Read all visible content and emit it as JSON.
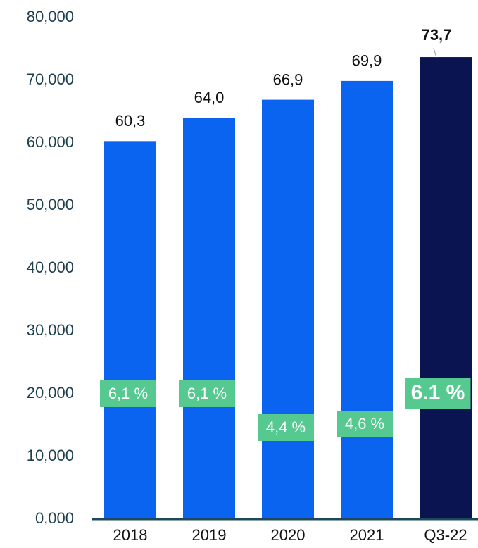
{
  "chart_data": {
    "type": "bar",
    "categories": [
      "2018",
      "2019",
      "2020",
      "2021",
      "Q3-22"
    ],
    "values": [
      60.3,
      64.0,
      66.9,
      69.9,
      73.7
    ],
    "value_labels": [
      "60,3",
      "64,0",
      "66,9",
      "69,9",
      "73,7"
    ],
    "colors": [
      "#0a64f0",
      "#0a64f0",
      "#0a64f0",
      "#0a64f0",
      "#0a1450"
    ],
    "growth": {
      "values": [
        6.1,
        6.1,
        4.4,
        4.6,
        6.1
      ],
      "value_labels": [
        "6,1 %",
        "6,1 %",
        "4,4 %",
        "4,6 %",
        "6.1 %"
      ],
      "color": "#55c98f"
    },
    "ylim": [
      0,
      80
    ],
    "yticks": [
      {
        "value": 0,
        "label": "0,000"
      },
      {
        "value": 10,
        "label": "10,000"
      },
      {
        "value": 20,
        "label": "20,000"
      },
      {
        "value": 30,
        "label": "30,000"
      },
      {
        "value": 40,
        "label": "40,000"
      },
      {
        "value": 50,
        "label": "50,000"
      },
      {
        "value": 60,
        "label": "60,000"
      },
      {
        "value": 70,
        "label": "70,000"
      },
      {
        "value": 80,
        "label": "80,000"
      }
    ],
    "grid": false
  }
}
